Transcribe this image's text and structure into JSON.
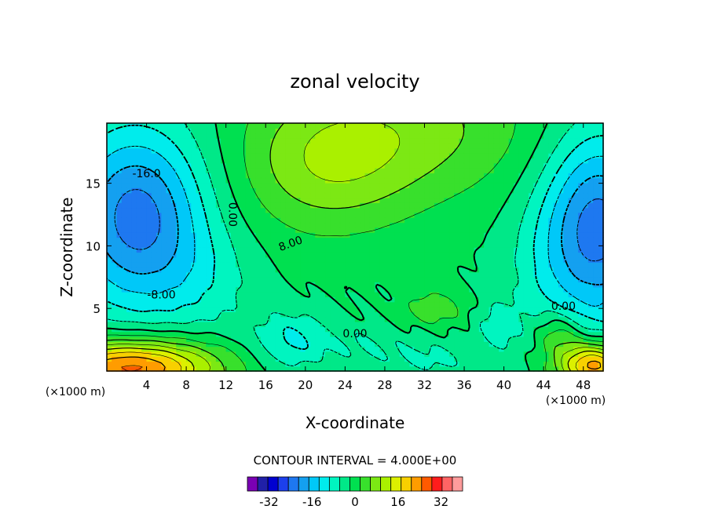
{
  "chart_data": {
    "type": "heatmap",
    "subtype": "filled-contour",
    "title": "zonal velocity",
    "xlabel": "X-coordinate",
    "ylabel": "Z-coordinate",
    "x_unit": "(×1000 m)",
    "y_unit": "(×1000 m)",
    "xlim": [
      0,
      50
    ],
    "ylim": [
      0,
      19.8
    ],
    "x_ticks": [
      4,
      8,
      12,
      16,
      20,
      24,
      28,
      32,
      36,
      40,
      44,
      48
    ],
    "y_ticks": [
      5,
      10,
      15
    ],
    "contour_interval_label": "CONTOUR INTERVAL = 4.000E+00",
    "contour_interval": 4,
    "contour_labels": [
      {
        "text": "-16.0",
        "x": 4,
        "z": 15.8
      },
      {
        "text": "0.00",
        "x": 12.7,
        "z": 12.5
      },
      {
        "text": "8.00",
        "x": 18.5,
        "z": 10.2
      },
      {
        "text": "-8.00",
        "x": 5.5,
        "z": 6.1
      },
      {
        "text": "0.00",
        "x": 25,
        "z": 3.0
      },
      {
        "text": "0.00",
        "x": 46,
        "z": 5.2
      }
    ],
    "colorbar": {
      "levels": [
        -40,
        -36,
        -32,
        -28,
        -24,
        -20,
        -16,
        -12,
        -8,
        -4,
        0,
        4,
        8,
        12,
        16,
        20,
        24,
        28,
        32,
        36,
        40
      ],
      "tick_labels": [
        "-32",
        "-16",
        "0",
        "16",
        "32"
      ],
      "colors": [
        "#7a00b4",
        "#2020a8",
        "#0000d0",
        "#1c40ec",
        "#1e78f0",
        "#14a0f0",
        "#00c8f8",
        "#00ecec",
        "#00f5c0",
        "#00e888",
        "#00e050",
        "#38e02c",
        "#7ce814",
        "#aaf000",
        "#dcf000",
        "#f8d000",
        "#ff9c00",
        "#ff5a00",
        "#ff1c1c",
        "#ff6464",
        "#ff9c9c"
      ]
    },
    "features": [
      {
        "type": "minimum",
        "x": 3,
        "z": 12.3,
        "value": -20,
        "label": "upper-left core"
      },
      {
        "type": "minimum",
        "x": 48.5,
        "z": 11.5,
        "value": -20,
        "label": "upper-right core"
      },
      {
        "type": "maximum",
        "x": 2.5,
        "z": 0.4,
        "value": 30,
        "label": "lower-left core"
      },
      {
        "type": "maximum",
        "x": 48.5,
        "z": 0.6,
        "value": 28,
        "label": "lower-right core"
      },
      {
        "type": "maximum",
        "x": 22,
        "z": 16,
        "value": 9,
        "label": "upper-middle positive"
      },
      {
        "type": "maximum",
        "x": 33,
        "z": 5,
        "value": 8,
        "label": "mid-level positive"
      },
      {
        "type": "minimum",
        "x": 18.5,
        "z": 2.5,
        "value": -8,
        "label": "low-level negative"
      }
    ]
  }
}
